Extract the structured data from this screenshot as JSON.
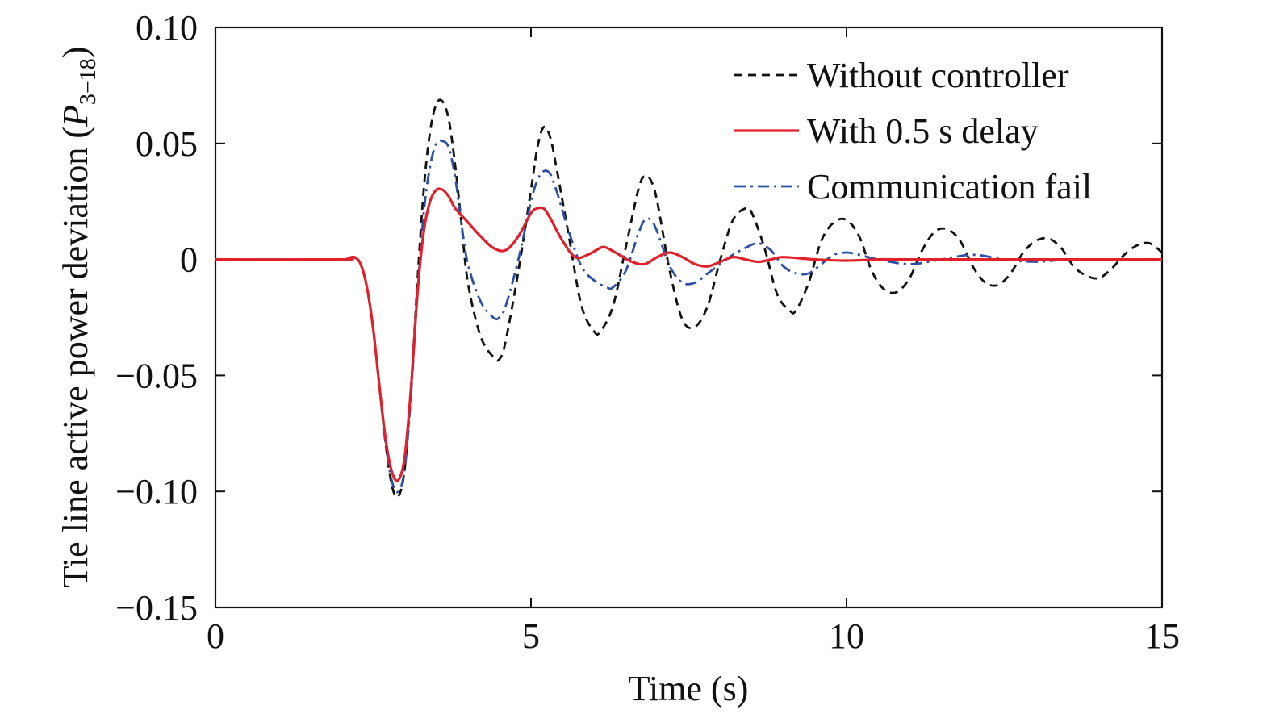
{
  "chart_data": {
    "type": "line",
    "xlabel": "Time (s)",
    "ylabel": {
      "prefix": "Tie line active power deviation (",
      "symbol": "P",
      "subscript": "3−18",
      "suffix": ")"
    },
    "xlim": [
      0,
      15
    ],
    "ylim": [
      -0.15,
      0.1
    ],
    "xticks": [
      0,
      5,
      10,
      15
    ],
    "xtick_labels": [
      "0",
      "5",
      "10",
      "15"
    ],
    "yticks": [
      0.1,
      0.05,
      0,
      -0.05,
      -0.1,
      -0.15
    ],
    "ytick_labels": [
      "0.10",
      "0.05",
      "0",
      "−0.05",
      "−0.10",
      "−0.15"
    ],
    "grid": false,
    "legend_position": "top-right",
    "series": [
      {
        "name": "Without controller",
        "color": "#111111",
        "style": "dashed",
        "x": [
          0,
          2.0,
          2.1,
          2.2,
          2.3,
          2.4,
          2.5,
          2.6,
          2.7,
          2.8,
          2.9,
          3.0,
          3.1,
          3.2,
          3.3,
          3.4,
          3.5,
          3.6,
          3.7,
          3.8,
          3.9,
          4.0,
          4.2,
          4.4,
          4.5,
          4.6,
          4.8,
          5.0,
          5.1,
          5.2,
          5.3,
          5.4,
          5.6,
          5.8,
          6.0,
          6.1,
          6.3,
          6.5,
          6.7,
          6.8,
          6.9,
          7.0,
          7.2,
          7.4,
          7.6,
          7.8,
          8.0,
          8.2,
          8.4,
          8.5,
          8.7,
          8.9,
          9.1,
          9.2,
          9.4,
          9.6,
          9.8,
          10.0,
          10.2,
          10.4,
          10.6,
          10.8,
          11.0,
          11.2,
          11.4,
          11.6,
          11.8,
          12.0,
          12.2,
          12.4,
          12.6,
          12.8,
          13.0,
          13.2,
          13.4,
          13.6,
          13.8,
          14.0,
          14.2,
          14.4,
          14.6,
          14.8,
          15.0
        ],
        "y": [
          0,
          0,
          0.0005,
          0.001,
          -0.002,
          -0.012,
          -0.03,
          -0.055,
          -0.08,
          -0.098,
          -0.102,
          -0.09,
          -0.055,
          -0.01,
          0.03,
          0.055,
          0.067,
          0.068,
          0.06,
          0.04,
          0.015,
          -0.01,
          -0.033,
          -0.042,
          -0.043,
          -0.035,
          -0.005,
          0.03,
          0.048,
          0.057,
          0.053,
          0.04,
          0.01,
          -0.02,
          -0.031,
          -0.031,
          -0.02,
          0.005,
          0.03,
          0.036,
          0.034,
          0.025,
          -0.005,
          -0.026,
          -0.029,
          -0.02,
          0.0,
          0.017,
          0.022,
          0.02,
          0.005,
          -0.015,
          -0.022,
          -0.022,
          -0.01,
          0.008,
          0.016,
          0.017,
          0.01,
          -0.005,
          -0.013,
          -0.014,
          -0.008,
          0.004,
          0.012,
          0.013,
          0.008,
          -0.003,
          -0.01,
          -0.011,
          -0.006,
          0.003,
          0.008,
          0.009,
          0.005,
          -0.003,
          -0.007,
          -0.008,
          -0.004,
          0.002,
          0.006,
          0.007,
          0.003
        ]
      },
      {
        "name": "With 0.5 s delay",
        "color": "#e0202a",
        "style": "solid",
        "x": [
          0,
          2.0,
          2.1,
          2.2,
          2.3,
          2.4,
          2.5,
          2.6,
          2.7,
          2.8,
          2.9,
          3.0,
          3.1,
          3.2,
          3.3,
          3.4,
          3.5,
          3.6,
          3.7,
          3.8,
          4.0,
          4.2,
          4.4,
          4.6,
          4.8,
          5.0,
          5.1,
          5.2,
          5.3,
          5.5,
          5.7,
          5.9,
          6.1,
          6.2,
          6.4,
          6.6,
          6.8,
          7.0,
          7.2,
          7.4,
          7.6,
          7.8,
          8.0,
          8.2,
          8.4,
          8.6,
          8.8,
          9.0,
          9.5,
          10.0,
          10.5,
          11.0,
          11.5,
          12.0,
          12.5,
          13.0,
          13.5,
          14.0,
          14.5,
          15.0
        ],
        "y": [
          0,
          0,
          0.0005,
          0.001,
          -0.002,
          -0.012,
          -0.03,
          -0.055,
          -0.078,
          -0.092,
          -0.095,
          -0.085,
          -0.055,
          -0.015,
          0.012,
          0.025,
          0.03,
          0.03,
          0.027,
          0.022,
          0.016,
          0.01,
          0.005,
          0.004,
          0.01,
          0.02,
          0.022,
          0.022,
          0.018,
          0.008,
          0.001,
          0.002,
          0.005,
          0.005,
          0.002,
          -0.001,
          -0.002,
          0.001,
          0.003,
          0.001,
          -0.002,
          -0.003,
          -0.001,
          0.001,
          0.0,
          -0.001,
          0.0,
          0.001,
          0.0,
          -0.0005,
          0.0,
          0.0,
          0.0,
          0.0,
          0.0,
          0.0,
          0.0,
          0.0,
          0.0,
          0.0
        ]
      },
      {
        "name": "Communication fail",
        "color": "#2a4fa8",
        "style": "dashdot",
        "x": [
          0,
          2.0,
          2.1,
          2.2,
          2.3,
          2.4,
          2.5,
          2.6,
          2.7,
          2.8,
          2.9,
          3.0,
          3.1,
          3.2,
          3.3,
          3.4,
          3.5,
          3.6,
          3.7,
          3.8,
          3.9,
          4.0,
          4.2,
          4.4,
          4.5,
          4.6,
          4.8,
          5.0,
          5.1,
          5.2,
          5.3,
          5.4,
          5.6,
          5.8,
          6.0,
          6.2,
          6.3,
          6.5,
          6.7,
          6.8,
          6.9,
          7.0,
          7.2,
          7.4,
          7.6,
          7.8,
          8.0,
          8.2,
          8.4,
          8.6,
          8.8,
          9.0,
          9.2,
          9.4,
          9.6,
          9.8,
          10.0,
          10.2,
          10.5,
          11.0,
          11.5,
          12.0,
          12.5,
          13.0,
          13.5,
          14.0,
          14.5,
          15.0
        ],
        "y": [
          0,
          0,
          0.0005,
          0.001,
          -0.002,
          -0.012,
          -0.03,
          -0.055,
          -0.08,
          -0.096,
          -0.1,
          -0.09,
          -0.058,
          -0.015,
          0.02,
          0.04,
          0.05,
          0.051,
          0.048,
          0.035,
          0.015,
          -0.002,
          -0.018,
          -0.025,
          -0.025,
          -0.02,
          0.0,
          0.025,
          0.034,
          0.038,
          0.037,
          0.03,
          0.012,
          -0.003,
          -0.009,
          -0.012,
          -0.012,
          -0.005,
          0.011,
          0.017,
          0.017,
          0.012,
          -0.003,
          -0.01,
          -0.01,
          -0.006,
          -0.002,
          0.002,
          0.005,
          0.007,
          0.004,
          -0.003,
          -0.006,
          -0.006,
          -0.002,
          0.002,
          0.003,
          0.002,
          0.0,
          -0.002,
          0.0,
          0.002,
          0.0,
          -0.001,
          0.0,
          0.0,
          0.0,
          0.0
        ]
      }
    ]
  }
}
